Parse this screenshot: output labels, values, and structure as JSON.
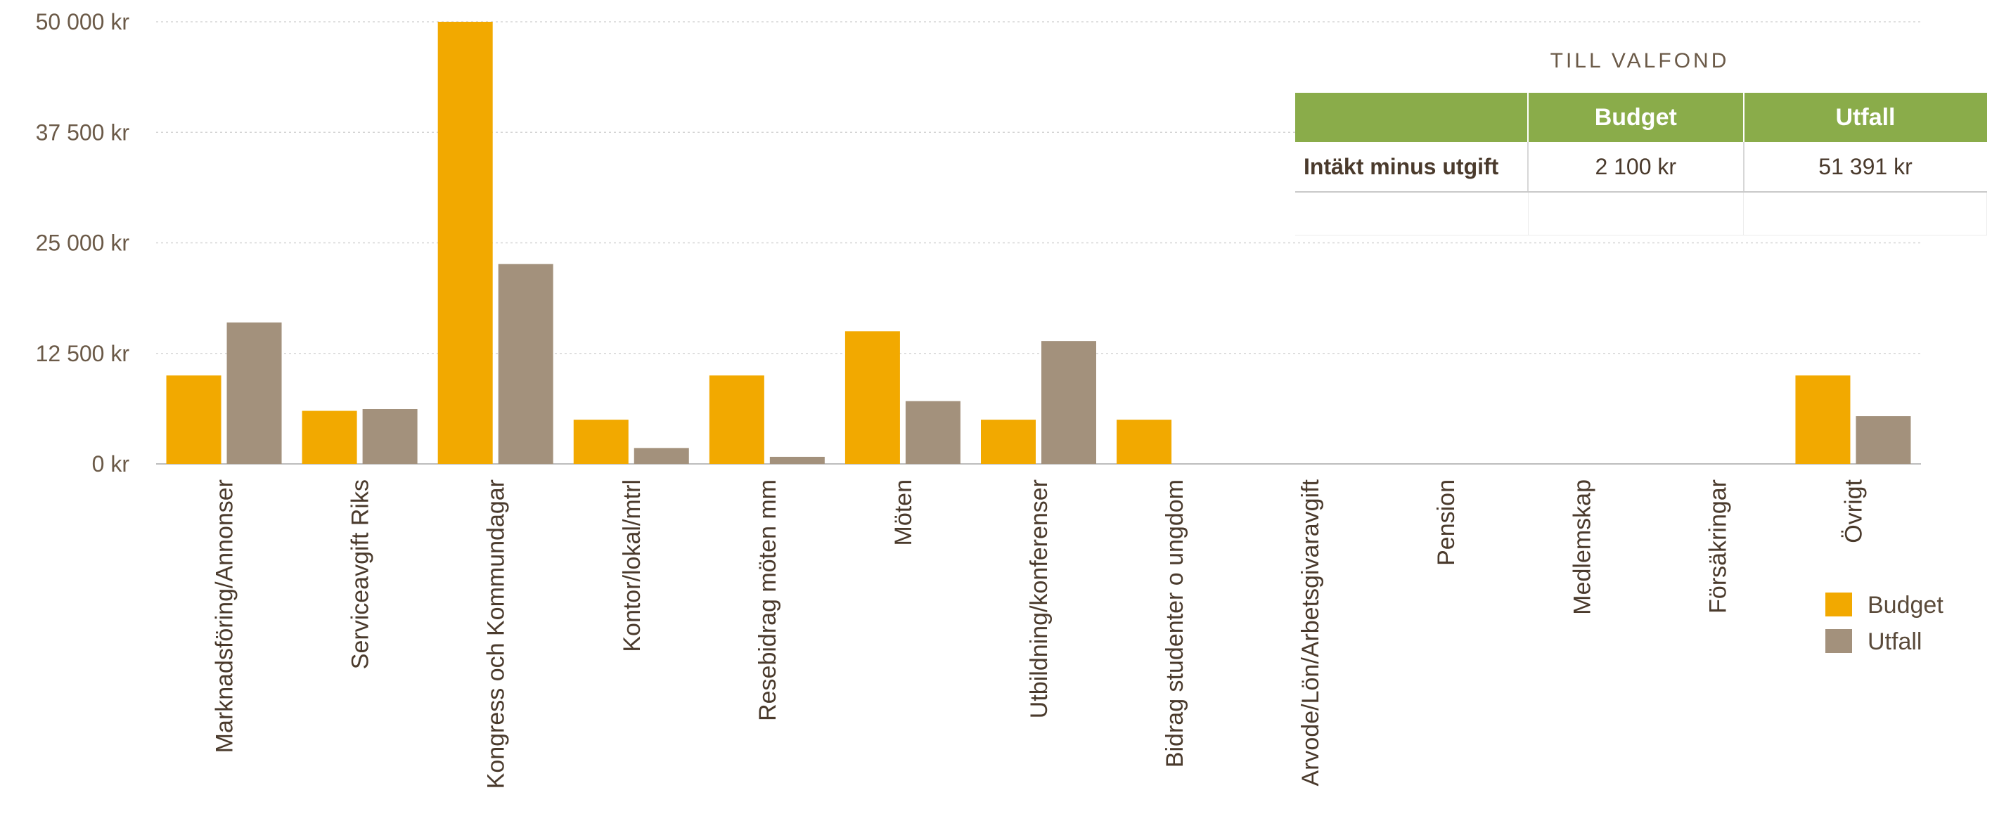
{
  "chart_data": {
    "type": "bar",
    "categories": [
      "Marknadsföring/Annonser",
      "Serviceavgift Riks",
      "Kongress och Kommundagar",
      "Kontor/lokal/mtrl",
      "Resebidrag möten mm",
      "Möten",
      "Utbildning/konferenser",
      "Bidrag studenter o ungdom",
      "Arvode/Lön/Arbetsgivaravgift",
      "Pension",
      "Medlemskap",
      "Försäkringar",
      "Övrigt"
    ],
    "series": [
      {
        "name": "Budget",
        "color": "#f2a900",
        "values": [
          10000,
          6000,
          50000,
          5000,
          10000,
          15000,
          5000,
          5000,
          0,
          0,
          0,
          0,
          10000
        ]
      },
      {
        "name": "Utfall",
        "color": "#a3917c",
        "values": [
          16000,
          6200,
          22600,
          1800,
          800,
          7100,
          13900,
          0,
          0,
          0,
          0,
          0,
          5400
        ]
      }
    ],
    "ylim": [
      0,
      50000
    ],
    "yticks": [
      0,
      12500,
      25000,
      37500,
      50000
    ],
    "ytick_labels": [
      "0 kr",
      "12 500 kr",
      "25 000 kr",
      "37 500 kr",
      "50 000 kr"
    ],
    "grid": true,
    "legend_position": "right",
    "title": "",
    "xlabel": "",
    "ylabel": ""
  },
  "fund_table": {
    "title": "TILL VALFOND",
    "headers": [
      "",
      "Budget",
      "Utfall"
    ],
    "row_label": "Intäkt minus utgift",
    "budget": "2 100 kr",
    "utfall": "51 391 kr"
  }
}
